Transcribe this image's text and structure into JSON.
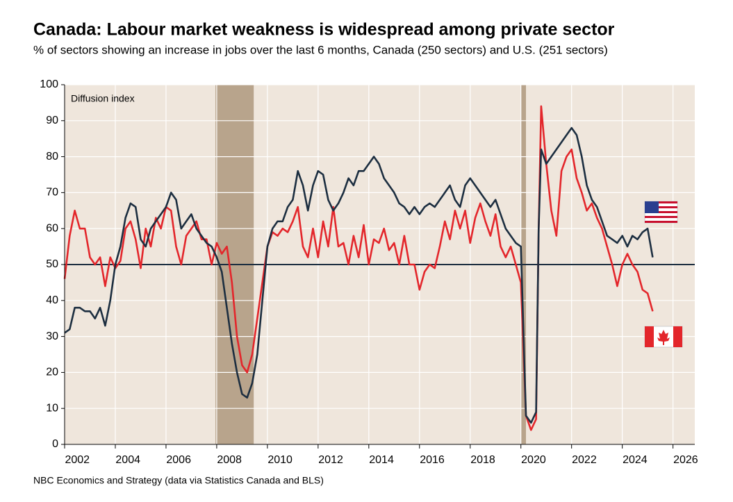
{
  "chart_data": {
    "type": "line",
    "title": "Canada: Labour market weakness is widespread among private sector",
    "subtitle": "% of sectors showing an increase in jobs over the last 6 months, Canada (250 sectors) and U.S. (251 sectors)",
    "annotation": "Diffusion index",
    "source": "NBC Economics and Strategy (data via Statistics Canada and BLS)",
    "xlim": [
      2002,
      2026.86
    ],
    "ylim": [
      0,
      100
    ],
    "yticks": [
      0,
      10,
      20,
      30,
      40,
      50,
      60,
      70,
      80,
      90,
      100
    ],
    "xticks": [
      {
        "value": 2002.5,
        "label": "2002"
      },
      {
        "value": 2004.5,
        "label": "2004"
      },
      {
        "value": 2006.5,
        "label": "2006"
      },
      {
        "value": 2008.5,
        "label": "2008"
      },
      {
        "value": 2010.5,
        "label": "2010"
      },
      {
        "value": 2012.5,
        "label": "2012"
      },
      {
        "value": 2014.5,
        "label": "2014"
      },
      {
        "value": 2016.5,
        "label": "2016"
      },
      {
        "value": 2018.5,
        "label": "2018"
      },
      {
        "value": 2020.5,
        "label": "2020"
      },
      {
        "value": 2022.5,
        "label": "2022"
      },
      {
        "value": 2024.5,
        "label": "2024"
      },
      {
        "value": 2026.5,
        "label": "2026"
      }
    ],
    "xgrid": [
      2004,
      2006,
      2008,
      2010,
      2012,
      2014,
      2016,
      2018,
      2020,
      2022,
      2024,
      2026
    ],
    "grid": true,
    "reference_line": 50,
    "shaded_periods": [
      [
        2007.95,
        2009.46
      ],
      [
        2020.0,
        2020.2
      ]
    ],
    "x": [
      2002.0,
      2002.2,
      2002.4,
      2002.6,
      2002.8,
      2003.0,
      2003.2,
      2003.4,
      2003.6,
      2003.8,
      2004.0,
      2004.2,
      2004.4,
      2004.6,
      2004.8,
      2005.0,
      2005.2,
      2005.4,
      2005.6,
      2005.8,
      2006.0,
      2006.2,
      2006.4,
      2006.6,
      2006.8,
      2007.0,
      2007.2,
      2007.4,
      2007.6,
      2007.8,
      2008.0,
      2008.2,
      2008.4,
      2008.6,
      2008.8,
      2009.0,
      2009.2,
      2009.4,
      2009.6,
      2009.8,
      2010.0,
      2010.2,
      2010.4,
      2010.6,
      2010.8,
      2011.0,
      2011.2,
      2011.4,
      2011.6,
      2011.8,
      2012.0,
      2012.2,
      2012.4,
      2012.6,
      2012.8,
      2013.0,
      2013.2,
      2013.4,
      2013.6,
      2013.8,
      2014.0,
      2014.2,
      2014.4,
      2014.6,
      2014.8,
      2015.0,
      2015.2,
      2015.4,
      2015.6,
      2015.8,
      2016.0,
      2016.2,
      2016.4,
      2016.6,
      2016.8,
      2017.0,
      2017.2,
      2017.4,
      2017.6,
      2017.8,
      2018.0,
      2018.2,
      2018.4,
      2018.6,
      2018.8,
      2019.0,
      2019.2,
      2019.4,
      2019.6,
      2019.8,
      2020.0,
      2020.2,
      2020.4,
      2020.6,
      2020.7,
      2020.8,
      2021.0,
      2021.2,
      2021.4,
      2021.6,
      2021.8,
      2022.0,
      2022.2,
      2022.4,
      2022.6,
      2022.8,
      2023.0,
      2023.2,
      2023.4,
      2023.6,
      2023.8,
      2024.0,
      2024.2,
      2024.4,
      2024.6,
      2024.8,
      2025.0,
      2025.2
    ],
    "series": [
      {
        "color": "#e3262b",
        "values": [
          46,
          58,
          65,
          60,
          60,
          52,
          50,
          52,
          44,
          52,
          49,
          51,
          60,
          62,
          57,
          49,
          60,
          55,
          63,
          60,
          66,
          65,
          55,
          50,
          58,
          60,
          62,
          57,
          57,
          50,
          56,
          53,
          55,
          45,
          30,
          22,
          20,
          25,
          35,
          45,
          55,
          59,
          58,
          60,
          59,
          62,
          66,
          55,
          52,
          60,
          52,
          62,
          55,
          66,
          55,
          56,
          50,
          58,
          52,
          61,
          50,
          57,
          56,
          60,
          54,
          56,
          50,
          58,
          50,
          50,
          43,
          48,
          50,
          49,
          55,
          62,
          57,
          65,
          60,
          65,
          56,
          63,
          67,
          62,
          58,
          64,
          55,
          52,
          55,
          50,
          45,
          8,
          4,
          7,
          60,
          94,
          78,
          65,
          58,
          76,
          80,
          82,
          74,
          70,
          65,
          67,
          63,
          60,
          55,
          50,
          44,
          50,
          53,
          50,
          48,
          43,
          42,
          37
        ]
      },
      {
        "color": "#1c2e40",
        "values": [
          31,
          32,
          38,
          38,
          37,
          37,
          35,
          38,
          33,
          40,
          50,
          55,
          63,
          67,
          66,
          57,
          55,
          60,
          62,
          64,
          66,
          70,
          68,
          60,
          62,
          64,
          60,
          58,
          56,
          55,
          52,
          48,
          38,
          28,
          20,
          14,
          13,
          17,
          25,
          40,
          55,
          60,
          62,
          62,
          66,
          68,
          76,
          72,
          65,
          72,
          76,
          75,
          68,
          65,
          67,
          70,
          74,
          72,
          76,
          76,
          78,
          80,
          78,
          74,
          72,
          70,
          67,
          66,
          64,
          66,
          64,
          66,
          67,
          66,
          68,
          70,
          72,
          68,
          66,
          72,
          74,
          72,
          70,
          68,
          66,
          68,
          64,
          60,
          58,
          56,
          55,
          8,
          6,
          9,
          60,
          82,
          78,
          80,
          82,
          84,
          86,
          88,
          86,
          80,
          72,
          68,
          66,
          62,
          58,
          57,
          56,
          58,
          55,
          58,
          57,
          59,
          60,
          52
        ]
      }
    ]
  }
}
